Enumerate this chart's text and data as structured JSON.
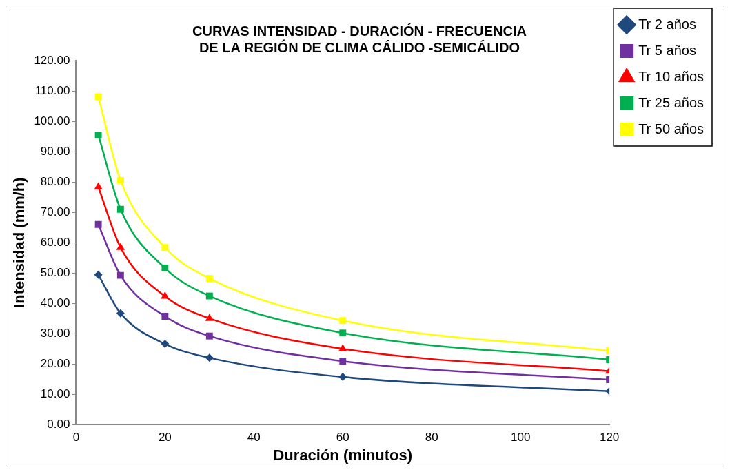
{
  "chart_data": {
    "type": "line",
    "title": "CURVAS INTENSIDAD - DURACIÓN - FRECUENCIA DE LA REGIÓN DE CLIMA CÁLIDO -SEMICÁLIDO",
    "xlabel": "Duración (minutos)",
    "ylabel": "Intensidad (mm/h)",
    "x": [
      5,
      10,
      20,
      30,
      60,
      120
    ],
    "xlim": [
      0,
      120
    ],
    "xticks": [
      0,
      20,
      40,
      60,
      80,
      100,
      120
    ],
    "ylim": [
      0,
      120
    ],
    "yticks": [
      {
        "value": 0,
        "label": "0.00"
      },
      {
        "value": 10,
        "label": "10.00"
      },
      {
        "value": 20,
        "label": "20.00"
      },
      {
        "value": 30,
        "label": "30.00"
      },
      {
        "value": 40,
        "label": "40.00"
      },
      {
        "value": 50,
        "label": "50.00"
      },
      {
        "value": 60,
        "label": "60.00"
      },
      {
        "value": 70,
        "label": "70.00"
      },
      {
        "value": 80,
        "label": "80.00"
      },
      {
        "value": 90,
        "label": "90.00"
      },
      {
        "value": 100,
        "label": "100.00"
      },
      {
        "value": 110,
        "label": "110.00"
      },
      {
        "value": 120,
        "label": "120.00"
      }
    ],
    "grid": false,
    "legend": "right",
    "series": [
      {
        "name": "Tr 2 años",
        "color": "#1f497d",
        "marker": "diamond",
        "values": [
          49.4,
          36.7,
          26.6,
          22.0,
          15.7,
          11.0
        ]
      },
      {
        "name": "Tr 5 años",
        "color": "#7030a0",
        "marker": "square",
        "values": [
          66.0,
          49.2,
          35.7,
          29.2,
          20.9,
          14.8
        ]
      },
      {
        "name": "Tr 10 años",
        "color": "#ff0000",
        "marker": "triangle",
        "values": [
          78.3,
          58.4,
          42.3,
          35.0,
          25.0,
          17.6
        ]
      },
      {
        "name": "Tr 25 años",
        "color": "#00b050",
        "marker": "square",
        "values": [
          95.5,
          71.0,
          51.6,
          42.4,
          30.2,
          21.4
        ]
      },
      {
        "name": "Tr 50 años",
        "color": "#ffff00",
        "marker": "square",
        "values": [
          108.1,
          80.5,
          58.4,
          48.2,
          34.3,
          24.3
        ]
      }
    ]
  }
}
